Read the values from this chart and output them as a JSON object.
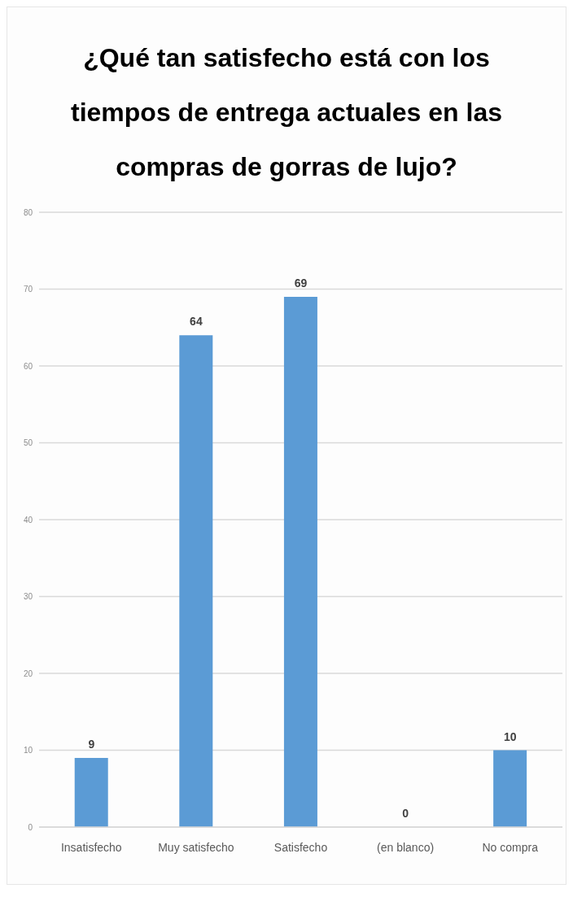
{
  "chart_data": {
    "type": "bar",
    "title": "¿Qué tan satisfecho está con los tiempos de entrega actuales en las compras de gorras de lujo?",
    "categories": [
      "Insatisfecho",
      "Muy satisfecho",
      "Satisfecho",
      "(en blanco)",
      "No compra"
    ],
    "values": [
      9,
      64,
      69,
      0,
      10
    ],
    "color": "#5b9bd5",
    "ylim": [
      0,
      80
    ],
    "yticks": [
      0,
      10,
      20,
      30,
      40,
      50,
      60,
      70,
      80
    ],
    "grid": "y",
    "data_labels": true
  }
}
